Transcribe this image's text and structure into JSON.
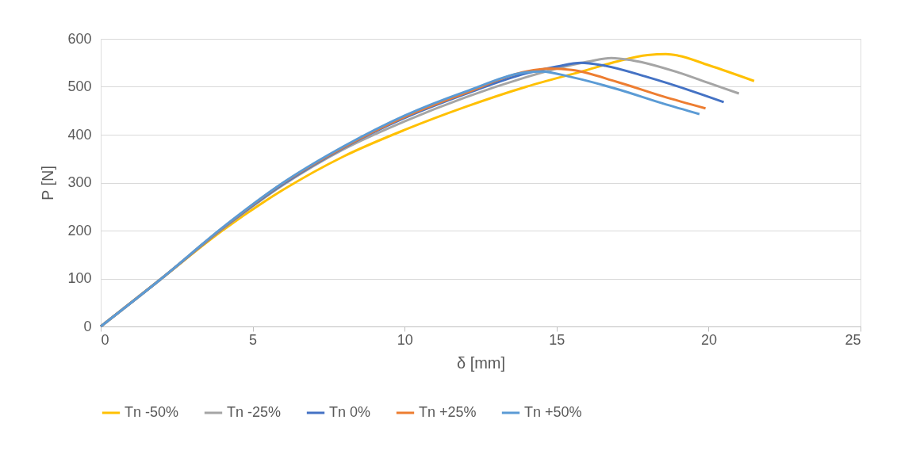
{
  "chart_data": {
    "type": "line",
    "xlabel": "δ [mm]",
    "ylabel": "P [N]",
    "xlim": [
      0,
      25
    ],
    "xticks": [
      0,
      5,
      10,
      15,
      20,
      25
    ],
    "ylim": [
      0,
      600
    ],
    "yticks": [
      0,
      100,
      200,
      300,
      400,
      500,
      600
    ],
    "grid": "y",
    "legend": "bottom",
    "marker": "none",
    "line_style": "solid",
    "series": [
      {
        "name": "Tn -50%",
        "color": "#ffc000",
        "x": [
          0,
          2,
          4,
          6,
          8,
          10,
          12,
          14,
          16,
          17,
          18,
          18.6,
          19,
          20,
          21.5
        ],
        "values": [
          0,
          100,
          200,
          285,
          355,
          410,
          458,
          500,
          535,
          553,
          566,
          568,
          565,
          545,
          512
        ]
      },
      {
        "name": "Tn -25%",
        "color": "#a5a5a5",
        "x": [
          0,
          2,
          4,
          6,
          8,
          10,
          12,
          14,
          15,
          16,
          16.8,
          17.5,
          19,
          20,
          21
        ],
        "values": [
          0,
          100,
          203,
          295,
          370,
          428,
          478,
          520,
          538,
          552,
          560,
          555,
          530,
          508,
          486
        ]
      },
      {
        "name": "Tn 0%",
        "color": "#4472c4",
        "x": [
          0,
          2,
          4,
          6,
          8,
          10,
          12,
          14,
          15,
          15.8,
          16.5,
          18,
          19.5,
          20.5
        ],
        "values": [
          0,
          100,
          204,
          297,
          373,
          435,
          485,
          528,
          542,
          550,
          545,
          520,
          490,
          468
        ]
      },
      {
        "name": "Tn +25%",
        "color": "#ed7d31",
        "x": [
          0,
          2,
          4,
          6,
          8,
          10,
          12,
          14,
          14.8,
          15.5,
          17,
          18.5,
          19.9
        ],
        "values": [
          0,
          100,
          205,
          299,
          374,
          437,
          487,
          532,
          538,
          535,
          510,
          480,
          455
        ]
      },
      {
        "name": "Tn +50%",
        "color": "#5b9bd5",
        "x": [
          0,
          2,
          4,
          6,
          8,
          10,
          12,
          14,
          14.5,
          15.5,
          17,
          18.5,
          19.7
        ],
        "values": [
          0,
          100,
          206,
          300,
          376,
          440,
          490,
          530,
          532,
          520,
          495,
          465,
          443
        ]
      }
    ]
  }
}
